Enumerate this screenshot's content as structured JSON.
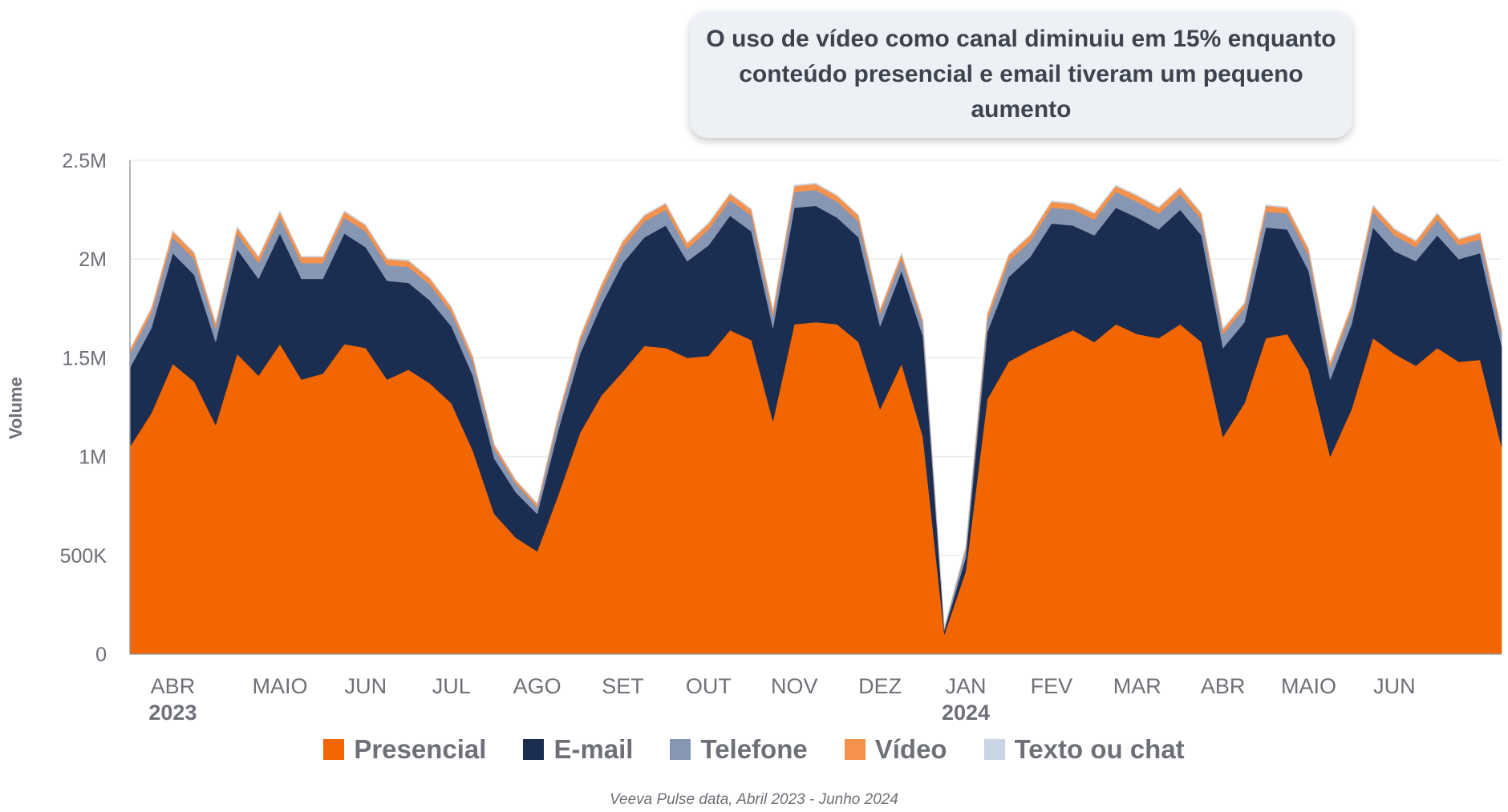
{
  "callout": {
    "line1": "O uso de vídeo como canal diminuiu em 15% enquanto",
    "line2": "conteúdo presencial e email tiveram um pequeno aumento"
  },
  "source": "Veeva Pulse data, Abril 2023 - Junho 2024",
  "colors": {
    "presencial": "#f26600",
    "email": "#1c2d52",
    "telefone": "#8796b3",
    "video": "#f4924d",
    "texto": "#c9d6e3",
    "grid": "#ececec",
    "axis_text": "#6d7077"
  },
  "chart_data": {
    "type": "area",
    "stacked": true,
    "ylabel": "Volume",
    "ylim": [
      0,
      2500000
    ],
    "y_ticks": [
      {
        "value": 0,
        "label": "0"
      },
      {
        "value": 500000,
        "label": "500K"
      },
      {
        "value": 1000000,
        "label": "1M"
      },
      {
        "value": 1500000,
        "label": "1.5M"
      },
      {
        "value": 2000000,
        "label": "2M"
      },
      {
        "value": 2500000,
        "label": "2.5M"
      }
    ],
    "grid": true,
    "legend_position": "bottom",
    "x_ticks": [
      {
        "index": 2,
        "label": "ABR",
        "year": "2023"
      },
      {
        "index": 7,
        "label": "MAIO",
        "year": ""
      },
      {
        "index": 11,
        "label": "JUN",
        "year": ""
      },
      {
        "index": 15,
        "label": "JUL",
        "year": ""
      },
      {
        "index": 19,
        "label": "AGO",
        "year": ""
      },
      {
        "index": 23,
        "label": "SET",
        "year": ""
      },
      {
        "index": 27,
        "label": "OUT",
        "year": ""
      },
      {
        "index": 31,
        "label": "NOV",
        "year": ""
      },
      {
        "index": 35,
        "label": "DEZ",
        "year": ""
      },
      {
        "index": 39,
        "label": "JAN",
        "year": "2024"
      },
      {
        "index": 43,
        "label": "FEV",
        "year": ""
      },
      {
        "index": 47,
        "label": "MAR",
        "year": ""
      },
      {
        "index": 51,
        "label": "ABR",
        "year": ""
      },
      {
        "index": 55,
        "label": "MAIO",
        "year": ""
      },
      {
        "index": 59,
        "label": "JUN",
        "year": ""
      }
    ],
    "n_points": 65,
    "series": [
      {
        "name": "Presencial",
        "color_key": "presencial",
        "values": [
          1050000,
          1220000,
          1470000,
          1380000,
          1160000,
          1520000,
          1410000,
          1570000,
          1390000,
          1420000,
          1570000,
          1550000,
          1390000,
          1440000,
          1370000,
          1270000,
          1030000,
          710000,
          590000,
          520000,
          810000,
          1120000,
          1310000,
          1430000,
          1560000,
          1550000,
          1500000,
          1510000,
          1640000,
          1590000,
          1180000,
          1670000,
          1680000,
          1670000,
          1580000,
          1240000,
          1470000,
          1100000,
          100000,
          420000,
          1290000,
          1480000,
          1540000,
          1590000,
          1640000,
          1580000,
          1670000,
          1620000,
          1600000,
          1670000,
          1580000,
          1100000,
          1270000,
          1600000,
          1620000,
          1440000,
          1000000,
          1240000,
          1600000,
          1520000,
          1460000,
          1550000,
          1480000,
          1490000,
          1050000
        ]
      },
      {
        "name": "E-mail",
        "color_key": "email",
        "values": [
          400000,
          430000,
          560000,
          540000,
          420000,
          530000,
          490000,
          560000,
          510000,
          480000,
          560000,
          510000,
          500000,
          440000,
          420000,
          390000,
          380000,
          280000,
          230000,
          190000,
          330000,
          400000,
          460000,
          550000,
          550000,
          620000,
          490000,
          560000,
          580000,
          550000,
          470000,
          590000,
          590000,
          540000,
          530000,
          420000,
          470000,
          510000,
          20000,
          70000,
          340000,
          430000,
          470000,
          590000,
          530000,
          540000,
          590000,
          590000,
          550000,
          580000,
          540000,
          450000,
          410000,
          560000,
          530000,
          500000,
          390000,
          430000,
          560000,
          520000,
          530000,
          570000,
          520000,
          540000,
          510000
        ]
      },
      {
        "name": "Telefone",
        "color_key": "telefone",
        "values": [
          70000,
          75000,
          80000,
          80000,
          70000,
          80000,
          80000,
          80000,
          80000,
          80000,
          80000,
          80000,
          80000,
          80000,
          80000,
          70000,
          70000,
          50000,
          45000,
          35000,
          60000,
          60000,
          70000,
          80000,
          80000,
          80000,
          60000,
          80000,
          80000,
          80000,
          60000,
          80000,
          80000,
          80000,
          80000,
          60000,
          60000,
          60000,
          10000,
          40000,
          60000,
          80000,
          80000,
          80000,
          80000,
          80000,
          80000,
          80000,
          80000,
          80000,
          80000,
          70000,
          70000,
          80000,
          80000,
          80000,
          60000,
          70000,
          80000,
          80000,
          70000,
          80000,
          70000,
          70000,
          60000
        ]
      },
      {
        "name": "Vídeo",
        "color_key": "video",
        "values": [
          20000,
          25000,
          30000,
          30000,
          25000,
          30000,
          30000,
          30000,
          30000,
          30000,
          30000,
          30000,
          30000,
          30000,
          30000,
          25000,
          25000,
          20000,
          15000,
          15000,
          20000,
          25000,
          30000,
          30000,
          30000,
          30000,
          30000,
          30000,
          30000,
          30000,
          30000,
          30000,
          30000,
          30000,
          30000,
          25000,
          25000,
          20000,
          5000,
          10000,
          30000,
          30000,
          30000,
          30000,
          30000,
          30000,
          30000,
          30000,
          30000,
          30000,
          30000,
          25000,
          25000,
          30000,
          30000,
          30000,
          25000,
          25000,
          30000,
          30000,
          30000,
          30000,
          30000,
          30000,
          25000
        ]
      },
      {
        "name": "Texto ou chat",
        "color_key": "texto",
        "values": [
          5000,
          5000,
          5000,
          5000,
          5000,
          5000,
          5000,
          5000,
          5000,
          5000,
          5000,
          5000,
          5000,
          5000,
          5000,
          5000,
          5000,
          5000,
          5000,
          5000,
          5000,
          5000,
          5000,
          5000,
          5000,
          5000,
          5000,
          5000,
          5000,
          5000,
          5000,
          5000,
          5000,
          5000,
          5000,
          5000,
          5000,
          5000,
          5000,
          5000,
          5000,
          5000,
          5000,
          5000,
          5000,
          5000,
          5000,
          5000,
          5000,
          5000,
          5000,
          5000,
          5000,
          5000,
          5000,
          5000,
          5000,
          5000,
          5000,
          5000,
          5000,
          5000,
          5000,
          5000,
          5000
        ]
      }
    ]
  }
}
